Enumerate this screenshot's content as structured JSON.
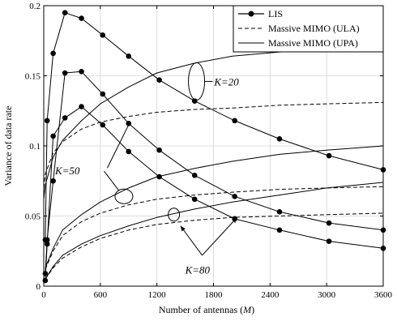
{
  "chart_data": {
    "type": "line",
    "xlabel": "Number of antennas (",
    "xlabel_var": "M",
    "xlabel_end": ")",
    "ylabel": "Variance of data rate",
    "xlim": [
      0,
      3600
    ],
    "ylim": [
      0,
      0.2
    ],
    "xticks": [
      0,
      600,
      1200,
      1800,
      2400,
      3000,
      3600
    ],
    "yticks": [
      0,
      0.05,
      0.1,
      0.15,
      0.2
    ],
    "xtick_labels": [
      "0",
      "600",
      "1200",
      "1800",
      "2400",
      "3000",
      "3600"
    ],
    "ytick_labels": [
      "0",
      "0.05",
      "0.1",
      "0.15",
      "0.2"
    ],
    "grid": true,
    "legend_position": "top-right",
    "legend": [
      {
        "label": "LIS",
        "style": "solid-marker"
      },
      {
        "label": "Massive MIMO (ULA)",
        "style": "dashed"
      },
      {
        "label": "Massive MIMO (UPA)",
        "style": "solid"
      }
    ],
    "annotations": [
      "K=20",
      "K=50",
      "K=80"
    ],
    "series": [
      {
        "group": "K=20",
        "style": "solid-marker",
        "x": [
          16,
          36,
          100,
          225,
          400,
          625,
          900,
          1225,
          1600,
          2025,
          2500,
          3025,
          3600
        ],
        "y": [
          0.033,
          0.118,
          0.166,
          0.195,
          0.191,
          0.179,
          0.164,
          0.147,
          0.132,
          0.118,
          0.105,
          0.093,
          0.083
        ]
      },
      {
        "group": "K=50",
        "style": "solid-marker",
        "x": [
          16,
          36,
          100,
          225,
          400,
          625,
          900,
          1225,
          1600,
          2025,
          2500,
          3025,
          3600
        ],
        "y": [
          0.009,
          0.033,
          0.075,
          0.152,
          0.153,
          0.137,
          0.116,
          0.097,
          0.079,
          0.064,
          0.053,
          0.045,
          0.04
        ]
      },
      {
        "group": "K=80",
        "style": "solid-marker",
        "x": [
          16,
          36,
          100,
          225,
          400,
          625,
          900,
          1225,
          1600,
          2025,
          2500,
          3025,
          3600
        ],
        "y": [
          0.004,
          0.03,
          0.107,
          0.12,
          0.128,
          0.115,
          0.096,
          0.078,
          0.062,
          0.048,
          0.04,
          0.032,
          0.027
        ]
      },
      {
        "group": "K=20",
        "style": "dashed",
        "x": [
          0,
          16,
          100,
          200,
          400,
          600,
          900,
          1200,
          1600,
          2000,
          2500,
          3000,
          3600
        ],
        "y": [
          0.07,
          0.08,
          0.095,
          0.103,
          0.112,
          0.117,
          0.121,
          0.124,
          0.126,
          0.127,
          0.129,
          0.13,
          0.131
        ]
      },
      {
        "group": "K=20",
        "style": "solid",
        "x": [
          0,
          16,
          100,
          200,
          400,
          600,
          900,
          1200,
          1600,
          2000,
          2500,
          3000,
          3600
        ],
        "y": [
          0.062,
          0.072,
          0.092,
          0.104,
          0.118,
          0.13,
          0.142,
          0.152,
          0.159,
          0.164,
          0.167,
          0.169,
          0.171
        ]
      },
      {
        "group": "K=50",
        "style": "dashed",
        "x": [
          16,
          100,
          200,
          400,
          600,
          900,
          1200,
          1600,
          2000,
          2500,
          3000,
          3600
        ],
        "y": [
          0.012,
          0.025,
          0.036,
          0.046,
          0.052,
          0.058,
          0.062,
          0.065,
          0.067,
          0.069,
          0.07,
          0.071
        ]
      },
      {
        "group": "K=50",
        "style": "solid",
        "x": [
          16,
          100,
          200,
          400,
          600,
          900,
          1200,
          1600,
          2000,
          2500,
          3000,
          3600
        ],
        "y": [
          0.013,
          0.027,
          0.04,
          0.051,
          0.06,
          0.07,
          0.078,
          0.084,
          0.089,
          0.094,
          0.097,
          0.1
        ]
      },
      {
        "group": "K=80",
        "style": "dashed",
        "x": [
          16,
          100,
          200,
          400,
          600,
          900,
          1200,
          1600,
          2000,
          2500,
          3000,
          3600
        ],
        "y": [
          0.005,
          0.013,
          0.02,
          0.028,
          0.034,
          0.04,
          0.044,
          0.047,
          0.049,
          0.05,
          0.051,
          0.052
        ]
      },
      {
        "group": "K=80",
        "style": "solid",
        "x": [
          16,
          100,
          200,
          400,
          600,
          900,
          1200,
          1600,
          2000,
          2500,
          3000,
          3600
        ],
        "y": [
          0.005,
          0.014,
          0.022,
          0.03,
          0.036,
          0.043,
          0.049,
          0.055,
          0.06,
          0.065,
          0.07,
          0.074
        ]
      }
    ]
  }
}
